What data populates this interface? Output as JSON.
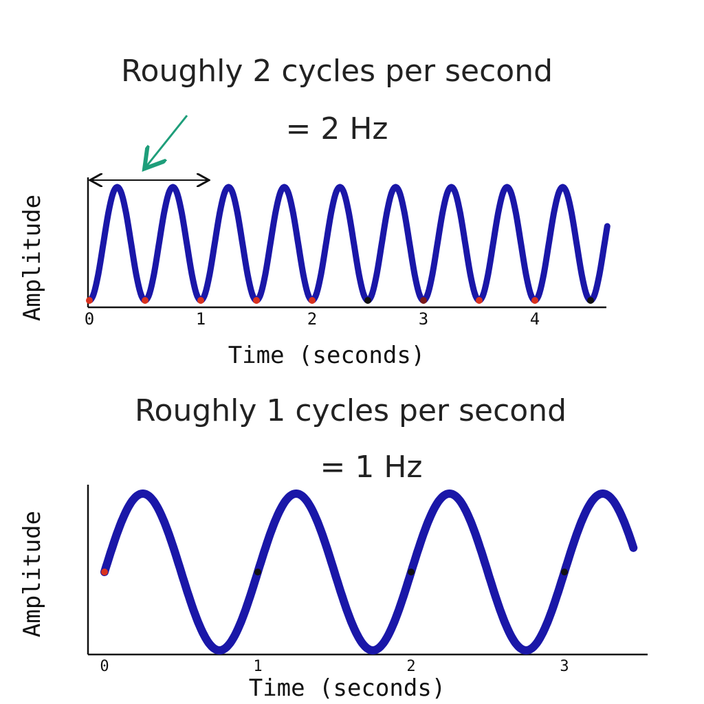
{
  "chart_data": [
    {
      "type": "line",
      "title": "Roughly 2 cycles per second",
      "subtitle": "= 2 Hz",
      "xlabel": "Time (seconds)",
      "ylabel": "Amplitude",
      "xticks": [
        "0",
        "1",
        "2",
        "3",
        "4"
      ],
      "xlim": [
        0,
        4.65
      ],
      "ylim": [
        -1,
        1
      ],
      "series": [
        {
          "function": "-cos(2*pi*f*t)",
          "frequency_hz": 2,
          "t_start": 0,
          "t_end": 4.65,
          "color": "#1a17a8"
        }
      ],
      "markers": [
        {
          "t": 0,
          "y": -1,
          "color": "#d8321e"
        },
        {
          "t": 0.5,
          "y": -1,
          "color": "#d8321e"
        },
        {
          "t": 1,
          "y": -1,
          "color": "#d8321e"
        },
        {
          "t": 1.5,
          "y": -1,
          "color": "#d8321e"
        },
        {
          "t": 2,
          "y": -1,
          "color": "#d8321e"
        },
        {
          "t": 2.5,
          "y": -1,
          "color": "#111111"
        },
        {
          "t": 3,
          "y": -1,
          "color": "#7a1a1a"
        },
        {
          "t": 3.5,
          "y": -1,
          "color": "#d8321e"
        },
        {
          "t": 4,
          "y": -1,
          "color": "#d8321e"
        },
        {
          "t": 4.5,
          "y": -1,
          "color": "#111111"
        }
      ],
      "period_annotation": {
        "t_start": 0,
        "t_end": 1,
        "arrow_color": "#1e9e7a"
      },
      "grid": false
    },
    {
      "type": "line",
      "title": "Roughly 1 cycles per second",
      "subtitle": "= 1 Hz",
      "xlabel": "Time (seconds)",
      "ylabel": "Amplitude",
      "xticks": [
        "0",
        "1",
        "2",
        "3"
      ],
      "xlim": [
        0,
        3.45
      ],
      "ylim": [
        -1,
        1
      ],
      "series": [
        {
          "function": "sin(2*pi*f*t)",
          "frequency_hz": 1,
          "t_start": 0,
          "t_end": 3.45,
          "color": "#1a17a8"
        }
      ],
      "markers": [
        {
          "t": 0,
          "y": 0,
          "color": "#d8321e"
        },
        {
          "t": 1,
          "y": 0,
          "color": "#111111"
        },
        {
          "t": 2,
          "y": 0,
          "color": "#111111"
        },
        {
          "t": 3,
          "y": 0,
          "color": "#111111"
        }
      ],
      "grid": false
    }
  ]
}
